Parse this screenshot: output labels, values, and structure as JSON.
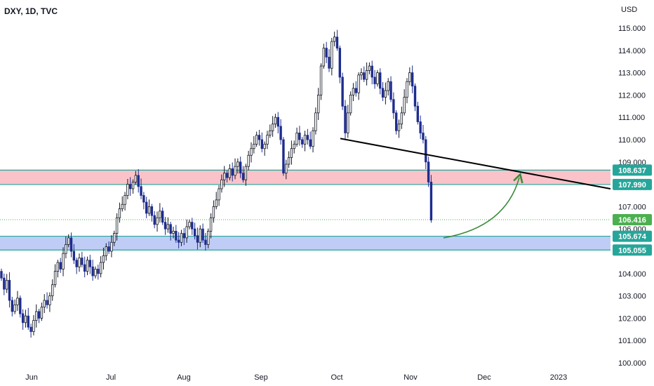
{
  "chart_data": {
    "type": "candlestick",
    "title": "DXY, 1D, TVC",
    "currency_label": "USD",
    "ylim": [
      99.6,
      115.5
    ],
    "y_ticks": [
      "100.000",
      "101.000",
      "102.000",
      "103.000",
      "104.000",
      "105.000",
      "106.000",
      "107.000",
      "108.000",
      "109.000",
      "110.000",
      "111.000",
      "112.000",
      "113.000",
      "114.000",
      "115.000"
    ],
    "x_ticks": [
      "Jun",
      "Jul",
      "Aug",
      "Sep",
      "Oct",
      "Nov",
      "Dec",
      "2023"
    ],
    "colors": {
      "up_candle": "#131722",
      "down_candle": "#1e2d8f",
      "resistance_zone": "#f8b8c0",
      "support_zone": "#b4c4f4",
      "zone_border": "#26a69a",
      "trendline": "#000000",
      "arrow": "#3a8a3a",
      "badge_green": "#26a69a",
      "badge_current": "#4caf50"
    },
    "zones": [
      {
        "name": "resistance",
        "low": 107.99,
        "high": 108.637
      },
      {
        "name": "support",
        "low": 105.055,
        "high": 105.674
      }
    ],
    "price_badges": [
      {
        "label": "108.637",
        "value": 108.637,
        "kind": "zone"
      },
      {
        "label": "107.990",
        "value": 107.99,
        "kind": "zone"
      },
      {
        "label": "106.416",
        "value": 106.416,
        "kind": "current"
      },
      {
        "label": "105.674",
        "value": 105.674,
        "kind": "zone"
      },
      {
        "label": "105.055",
        "value": 105.055,
        "kind": "zone"
      }
    ],
    "current_price": 106.416,
    "trendline": {
      "from": {
        "day": 130,
        "price": 110.05
      },
      "to": {
        "day": 252,
        "price": 107.8
      }
    },
    "arrow": {
      "from": {
        "day": 227,
        "price": 105.6
      },
      "to": {
        "day": 263,
        "price": 108.3
      }
    },
    "ohlc_closes": [
      103.8,
      103.3,
      103.7,
      102.8,
      102.3,
      102.6,
      102.9,
      102.2,
      101.8,
      102.1,
      101.6,
      101.4,
      101.9,
      102.3,
      102.0,
      102.5,
      102.8,
      102.6,
      103.0,
      103.5,
      104.1,
      104.5,
      104.2,
      104.9,
      105.3,
      105.6,
      105.0,
      104.6,
      104.3,
      104.7,
      104.4,
      104.1,
      104.6,
      104.3,
      103.9,
      104.2,
      104.0,
      104.5,
      104.8,
      105.2,
      105.0,
      105.4,
      105.8,
      106.5,
      106.9,
      107.1,
      107.5,
      108.0,
      107.8,
      108.1,
      108.4,
      107.9,
      107.5,
      107.2,
      106.7,
      107.0,
      106.6,
      106.2,
      106.5,
      106.8,
      106.3,
      106.0,
      106.2,
      105.8,
      105.9,
      105.5,
      105.4,
      105.8,
      105.6,
      106.1,
      106.3,
      106.0,
      105.7,
      105.4,
      106.0,
      105.5,
      105.3,
      105.9,
      106.5,
      107.0,
      107.3,
      107.8,
      108.2,
      108.5,
      108.3,
      108.7,
      108.4,
      108.8,
      109.0,
      108.5,
      108.2,
      108.8,
      109.3,
      109.6,
      109.8,
      110.2,
      110.0,
      109.6,
      109.8,
      110.2,
      110.4,
      110.7,
      111.0,
      110.6,
      110.0,
      108.5,
      108.9,
      109.2,
      109.6,
      109.8,
      110.3,
      110.0,
      109.8,
      110.2,
      110.0,
      109.7,
      110.4,
      111.2,
      112.0,
      113.3,
      114.1,
      113.7,
      113.2,
      114.4,
      114.6,
      114.1,
      112.8,
      111.5,
      110.3,
      111.2,
      112.0,
      112.3,
      112.1,
      112.9,
      113.0,
      112.7,
      113.1,
      113.3,
      112.8,
      112.5,
      113.0,
      112.3,
      111.9,
      112.2,
      112.6,
      111.8,
      111.2,
      110.4,
      110.7,
      111.2,
      111.9,
      112.6,
      113.0,
      112.4,
      111.5,
      110.8,
      110.3,
      110.0,
      109.0,
      108.1,
      106.4
    ]
  }
}
